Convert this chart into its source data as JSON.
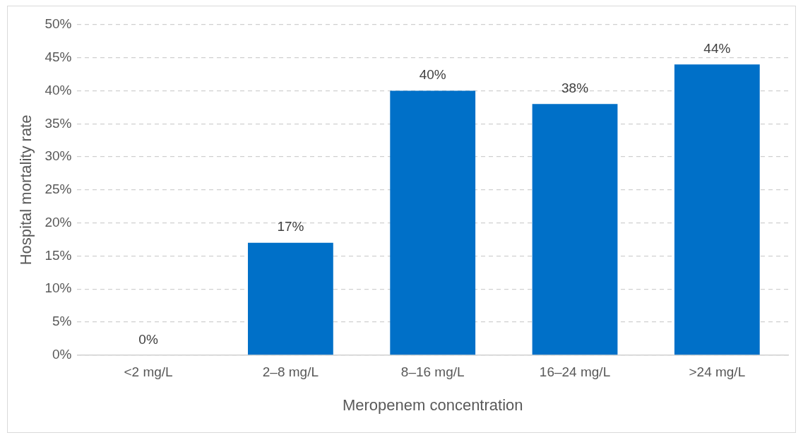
{
  "chart_data": {
    "type": "bar",
    "xlabel": "Meropenem concentration",
    "ylabel": "Hospital mortality rate",
    "categories": [
      "<2 mg/L",
      "2–8 mg/L",
      "8–16 mg/L",
      "16–24 mg/L",
      ">24 mg/L"
    ],
    "values": [
      0,
      17,
      40,
      38,
      44
    ],
    "value_labels": [
      "0%",
      "17%",
      "40%",
      "38%",
      "44%"
    ],
    "color": "#0070c8",
    "ylim": [
      0,
      50
    ],
    "yticks": [
      {
        "value": 0,
        "label": "0%"
      },
      {
        "value": 5,
        "label": "5%"
      },
      {
        "value": 10,
        "label": "10%"
      },
      {
        "value": 15,
        "label": "15%"
      },
      {
        "value": 20,
        "label": "20%"
      },
      {
        "value": 25,
        "label": "25%"
      },
      {
        "value": 30,
        "label": "30%"
      },
      {
        "value": 35,
        "label": "35%"
      },
      {
        "value": 40,
        "label": "40%"
      },
      {
        "value": 45,
        "label": "45%"
      },
      {
        "value": 50,
        "label": "50%"
      }
    ],
    "grid": "y",
    "legend": false
  }
}
